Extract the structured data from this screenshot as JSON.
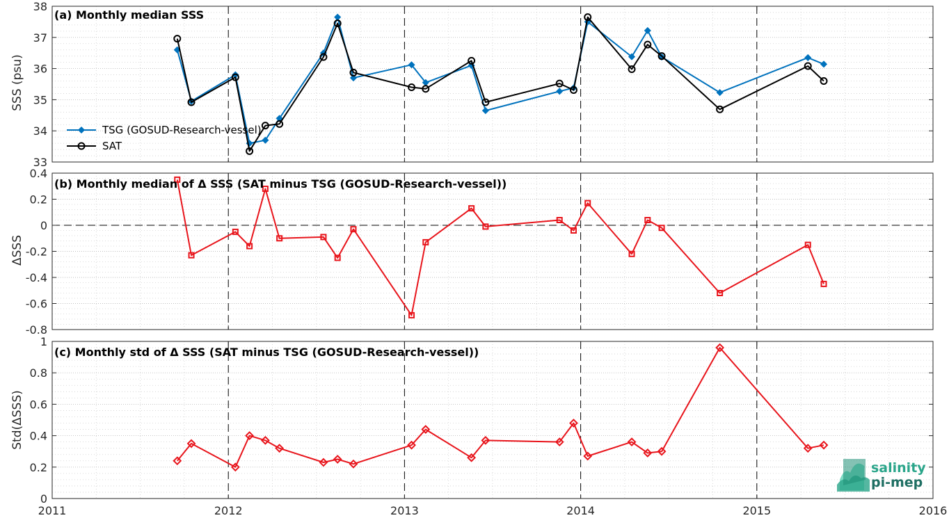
{
  "colors": {
    "tsg": "#0072BD",
    "sat": "#000000",
    "delta": "#E8141B",
    "grid": "#cfcfcf",
    "logo": "#2aa58a"
  },
  "logo": {
    "line1": "salinity",
    "line2": "pi-mep"
  },
  "chart_data": [
    {
      "type": "line",
      "title": "(a) Monthly median SSS",
      "ylabel": "SSS (psu)",
      "xlim": [
        2011,
        2016
      ],
      "ylim": [
        33,
        38
      ],
      "xticks": [
        2011,
        2012,
        2013,
        2014,
        2015,
        2016
      ],
      "xtick_labels": [
        "2011",
        "2012",
        "2013",
        "2014",
        "2015",
        "2016"
      ],
      "yticks": [
        33,
        34,
        35,
        36,
        37,
        38
      ],
      "ytick_labels": [
        "33",
        "34",
        "35",
        "36",
        "37",
        "38"
      ],
      "grid": true,
      "legend": "bottom-left",
      "series": [
        {
          "name": "TSG (GOSUD-Research-vessel)",
          "marker": "diamond",
          "color": "tsg",
          "x": [
            2011.71,
            2011.79,
            2012.04,
            2012.12,
            2012.21,
            2012.29,
            2012.54,
            2012.62,
            2012.71,
            2013.04,
            2013.12,
            2013.38,
            2013.46,
            2013.88,
            2013.96,
            2014.04,
            2014.29,
            2014.38,
            2014.46,
            2014.79,
            2015.29,
            2015.38
          ],
          "y": [
            36.6,
            34.95,
            35.8,
            33.6,
            33.7,
            34.4,
            36.5,
            37.65,
            35.7,
            36.12,
            35.55,
            36.1,
            34.65,
            35.27,
            35.38,
            37.5,
            36.38,
            37.22,
            36.37,
            35.23,
            36.35,
            36.14
          ]
        },
        {
          "name": "SAT",
          "marker": "circle",
          "color": "sat",
          "x": [
            2011.71,
            2011.79,
            2012.04,
            2012.12,
            2012.21,
            2012.29,
            2012.54,
            2012.62,
            2012.71,
            2013.04,
            2013.12,
            2013.38,
            2013.46,
            2013.88,
            2013.96,
            2014.04,
            2014.29,
            2014.38,
            2014.46,
            2014.79,
            2015.29,
            2015.38
          ],
          "y": [
            36.96,
            34.92,
            35.72,
            33.35,
            34.17,
            34.22,
            36.37,
            37.45,
            35.87,
            35.4,
            35.35,
            36.25,
            34.92,
            35.52,
            35.31,
            37.65,
            35.98,
            36.77,
            36.4,
            34.69,
            36.08,
            35.6
          ]
        }
      ]
    },
    {
      "type": "line",
      "title": "(b) Monthly median of Δ SSS (SAT minus TSG (GOSUD-Research-vessel))",
      "ylabel": "ΔSSS",
      "xlim": [
        2011,
        2016
      ],
      "ylim": [
        -0.8,
        0.4
      ],
      "xticks": [
        2011,
        2012,
        2013,
        2014,
        2015,
        2016
      ],
      "yticks": [
        -0.8,
        -0.6,
        -0.4,
        -0.2,
        0,
        0.2,
        0.4
      ],
      "ytick_labels": [
        "-0.8",
        "-0.6",
        "-0.4",
        "-0.2",
        "0",
        "0.2",
        "0.4"
      ],
      "grid": true,
      "series": [
        {
          "marker": "square",
          "color": "delta",
          "x": [
            2011.71,
            2011.79,
            2012.04,
            2012.12,
            2012.21,
            2012.29,
            2012.54,
            2012.62,
            2012.71,
            2013.04,
            2013.12,
            2013.38,
            2013.46,
            2013.88,
            2013.96,
            2014.04,
            2014.29,
            2014.38,
            2014.46,
            2014.79,
            2015.29,
            2015.38
          ],
          "y": [
            0.35,
            -0.23,
            -0.05,
            -0.16,
            0.28,
            -0.1,
            -0.09,
            -0.25,
            -0.03,
            -0.69,
            -0.13,
            0.13,
            -0.01,
            0.04,
            -0.04,
            0.17,
            -0.22,
            0.04,
            -0.02,
            -0.52,
            -0.15,
            -0.45
          ]
        }
      ]
    },
    {
      "type": "line",
      "title": "(c) Monthly std of Δ SSS (SAT minus TSG (GOSUD-Research-vessel))",
      "ylabel": "Std(ΔSSS)",
      "xlim": [
        2011,
        2016
      ],
      "ylim": [
        0,
        1
      ],
      "xticks": [
        2011,
        2012,
        2013,
        2014,
        2015,
        2016
      ],
      "xtick_labels": [
        "2011",
        "2012",
        "2013",
        "2014",
        "2015",
        "2016"
      ],
      "yticks": [
        0,
        0.2,
        0.4,
        0.6,
        0.8,
        1
      ],
      "ytick_labels": [
        "0",
        "0.2",
        "0.4",
        "0.6",
        "0.8",
        "1"
      ],
      "grid": true,
      "series": [
        {
          "marker": "diamond",
          "color": "delta",
          "x": [
            2011.71,
            2011.79,
            2012.04,
            2012.12,
            2012.21,
            2012.29,
            2012.54,
            2012.62,
            2012.71,
            2013.04,
            2013.12,
            2013.38,
            2013.46,
            2013.88,
            2013.96,
            2014.04,
            2014.29,
            2014.38,
            2014.46,
            2014.79,
            2015.29,
            2015.38
          ],
          "y": [
            0.24,
            0.35,
            0.2,
            0.4,
            0.37,
            0.32,
            0.23,
            0.25,
            0.22,
            0.34,
            0.44,
            0.26,
            0.37,
            0.36,
            0.48,
            0.27,
            0.36,
            0.29,
            0.3,
            0.96,
            0.32,
            0.34
          ]
        }
      ]
    }
  ]
}
